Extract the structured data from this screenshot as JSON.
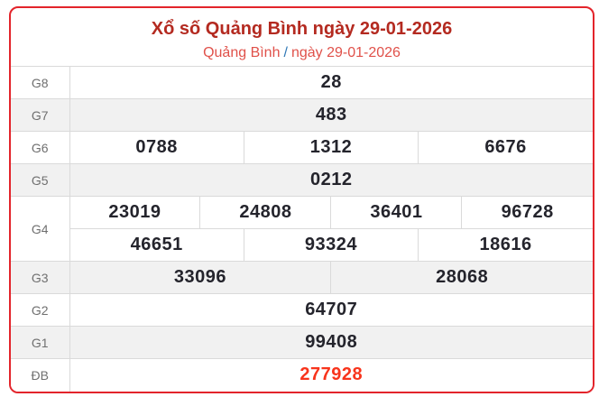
{
  "header": {
    "title": "Xổ số Quảng Bình ngày 29-01-2026",
    "breadcrumb": {
      "region": "Quảng Bình",
      "separator": "/",
      "date": "ngày 29-01-2026"
    }
  },
  "colors": {
    "border-red": "#e3242b",
    "title-red": "#b42a20",
    "crumb-red": "#e0514a",
    "sep-blue": "#3078b6",
    "special-orange": "#f8341c",
    "row-gray": "#f1f1f1",
    "number-dark": "#24242c"
  },
  "table": {
    "rows": [
      {
        "label": "G8",
        "cells": [
          "28"
        ]
      },
      {
        "label": "G7",
        "cells": [
          "483"
        ]
      },
      {
        "label": "G6",
        "cells": [
          "0788",
          "1312",
          "6676"
        ]
      },
      {
        "label": "G5",
        "cells": [
          "0212"
        ]
      },
      {
        "label": "G4",
        "cells": [
          "23019",
          "24808",
          "36401",
          "96728"
        ],
        "cells2": [
          "46651",
          "93324",
          "18616"
        ]
      },
      {
        "label": "G3",
        "cells": [
          "33096",
          "28068"
        ]
      },
      {
        "label": "G2",
        "cells": [
          "64707"
        ]
      },
      {
        "label": "G1",
        "cells": [
          "99408"
        ]
      },
      {
        "label": "ĐB",
        "cells": [
          "277928"
        ],
        "highlight": true
      }
    ]
  }
}
